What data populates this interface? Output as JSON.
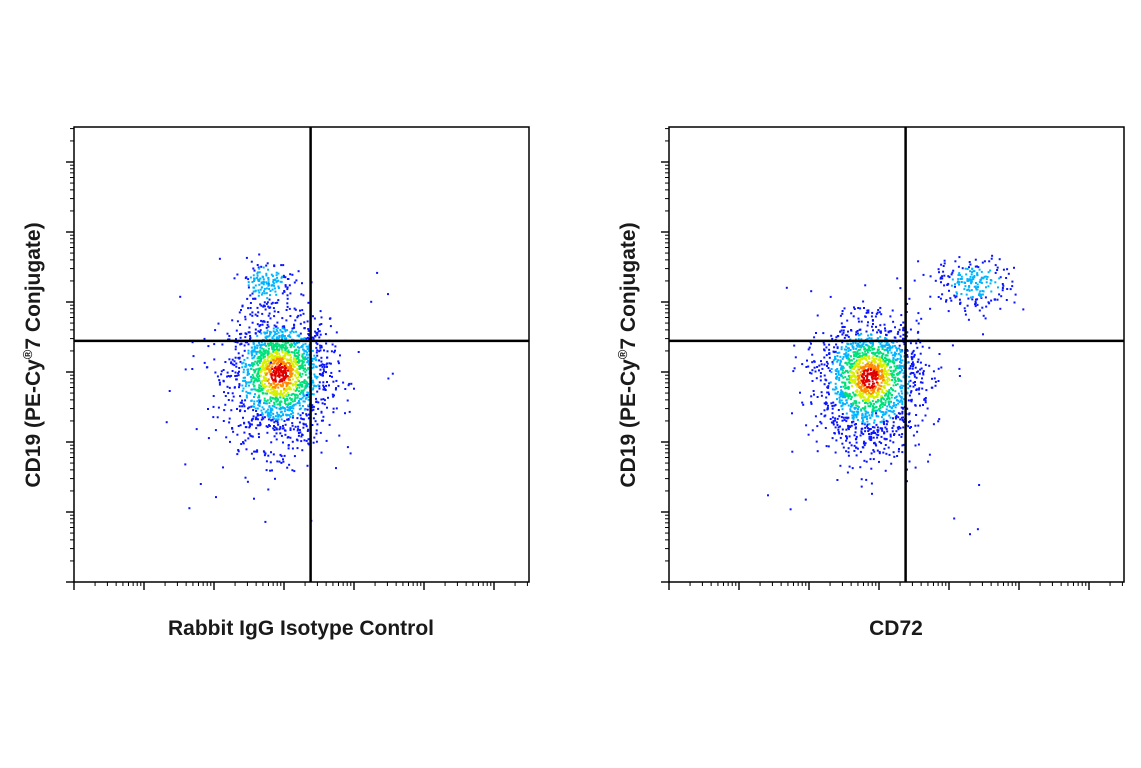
{
  "chart_data": [
    {
      "type": "scatter",
      "subtype": "flow-cytometry-density-dot-plot",
      "xlabel": "Rabbit IgG Isotype Control",
      "ylabel_main": "CD19 (PE-Cy",
      "ylabel_sup": "®",
      "ylabel_tail": "7 Conjugate)",
      "scale": "log",
      "tick_labels_shown": false,
      "grid": false,
      "quadrant_gate": {
        "x": 0.52,
        "y": 0.53
      },
      "populations": [
        {
          "name": "main",
          "cx": 0.45,
          "cy": 0.46,
          "sx": 0.055,
          "sy": 0.06,
          "n": 1800,
          "peak": "high"
        },
        {
          "name": "upper",
          "cx": 0.42,
          "cy": 0.66,
          "sx": 0.03,
          "sy": 0.025,
          "n": 170,
          "peak": "medium"
        }
      ],
      "colormap": [
        "#0a14ff",
        "#00b4ff",
        "#00e07a",
        "#d8f000",
        "#ff8c00",
        "#e00000"
      ]
    },
    {
      "type": "scatter",
      "subtype": "flow-cytometry-density-dot-plot",
      "xlabel": "CD72",
      "ylabel_main": "CD19 (PE-Cy",
      "ylabel_sup": "®",
      "ylabel_tail": "7 Conjugate)",
      "scale": "log",
      "tick_labels_shown": false,
      "grid": false,
      "quadrant_gate": {
        "x": 0.52,
        "y": 0.53
      },
      "populations": [
        {
          "name": "main",
          "cx": 0.44,
          "cy": 0.45,
          "sx": 0.055,
          "sy": 0.06,
          "n": 1800,
          "peak": "high"
        },
        {
          "name": "upper-right",
          "cx": 0.67,
          "cy": 0.66,
          "sx": 0.045,
          "sy": 0.025,
          "n": 220,
          "peak": "medium"
        }
      ],
      "colormap": [
        "#0a14ff",
        "#00b4ff",
        "#00e07a",
        "#d8f000",
        "#ff8c00",
        "#e00000"
      ]
    }
  ]
}
